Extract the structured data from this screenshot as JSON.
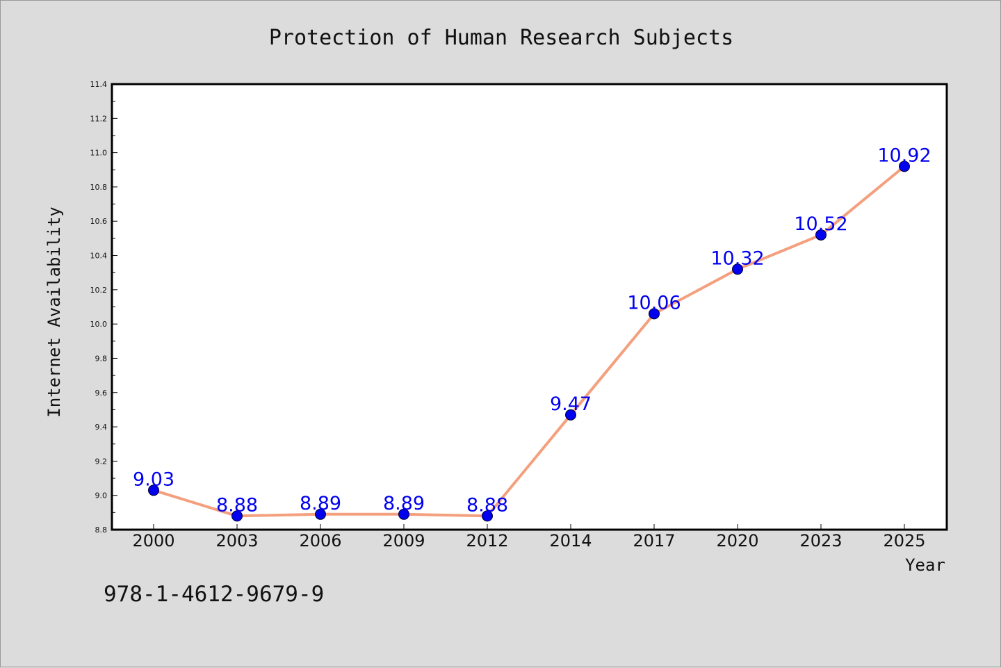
{
  "chart_data": {
    "type": "line",
    "title": "Protection of Human Research Subjects",
    "xlabel": "Year",
    "ylabel": "Internet Availability",
    "categories": [
      "2000",
      "2003",
      "2006",
      "2009",
      "2012",
      "2014",
      "2017",
      "2020",
      "2023",
      "2025"
    ],
    "series": [
      {
        "values": [
          9.03,
          8.88,
          8.89,
          8.89,
          8.88,
          9.47,
          10.06,
          10.32,
          10.52,
          10.92
        ],
        "data_labels": [
          "9.03",
          "8.88",
          "8.89",
          "8.89",
          "8.88",
          "9.47",
          "10.06",
          "10.32",
          "10.52",
          "10.92"
        ]
      }
    ],
    "ylim": [
      8.8,
      11.4
    ],
    "yticks": [
      8.8,
      9.0,
      9.2,
      9.4,
      9.6,
      9.8,
      10.0,
      10.2,
      10.4,
      10.6,
      10.8,
      11.0,
      11.2,
      11.4
    ],
    "ytick_labels": [
      "8.8",
      "9.0",
      "9.2",
      "9.4",
      "9.6",
      "9.8",
      "10.0",
      "10.2",
      "10.4",
      "10.6",
      "10.8",
      "11.0",
      "11.2",
      "11.4"
    ],
    "grid": false,
    "line_color": "#f4a07e",
    "marker_color": "#0000ee",
    "label_color": "#0000ee",
    "background_color": "#dcdcdc",
    "plot_background_color": "#ffffff"
  },
  "annotation": "978-1-4612-9679-9"
}
